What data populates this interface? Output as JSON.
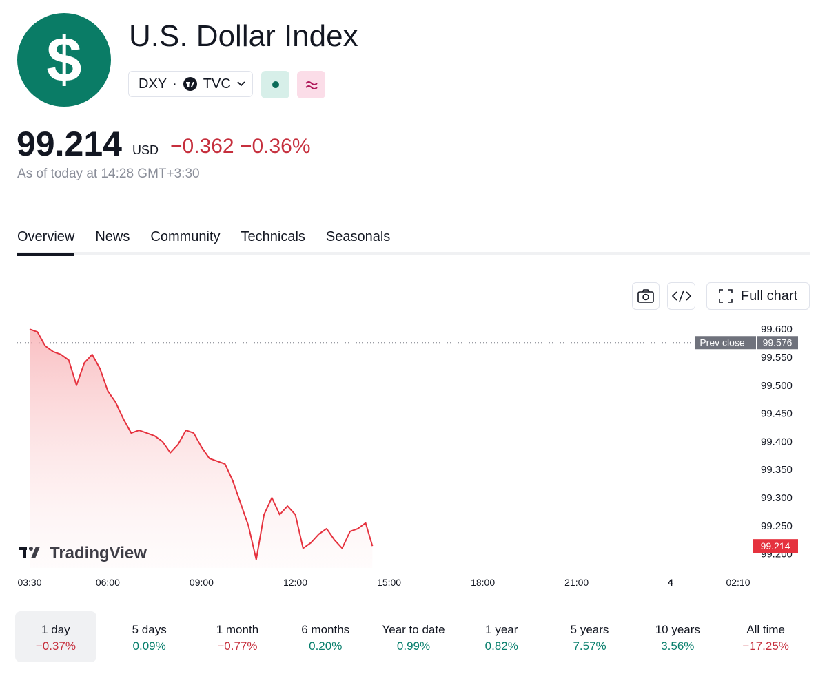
{
  "header": {
    "logo": "$",
    "title": "U.S. Dollar Index",
    "symbol": "DXY",
    "separator": "·",
    "exchange": "TVC",
    "price": 99.214,
    "currency": "USD",
    "change": "−0.362",
    "change_percent": "−0.36%",
    "as_of": "As of today at 14:28 GMT+3:30"
  },
  "tabs": [
    "Overview",
    "News",
    "Community",
    "Technicals",
    "Seasonals"
  ],
  "active_tab": 0,
  "toolbar": {
    "full_chart": "Full chart"
  },
  "chart": {
    "type": "line",
    "color": "#e5323e",
    "x": [
      "03:30",
      "03:45",
      "04:00",
      "04:15",
      "04:30",
      "04:45",
      "05:00",
      "05:15",
      "05:30",
      "05:45",
      "06:00",
      "06:15",
      "06:30",
      "06:45",
      "07:00",
      "07:15",
      "07:30",
      "07:45",
      "08:00",
      "08:15",
      "08:30",
      "08:45",
      "09:00",
      "09:15",
      "09:30",
      "09:45",
      "10:00",
      "10:15",
      "10:30",
      "10:45",
      "11:00",
      "11:15",
      "11:30",
      "11:45",
      "12:00",
      "12:15",
      "12:30",
      "12:45",
      "13:00",
      "13:15",
      "13:30",
      "13:45",
      "14:00",
      "14:15",
      "14:28"
    ],
    "values": [
      99.6,
      99.595,
      99.57,
      99.56,
      99.555,
      99.545,
      99.5,
      99.54,
      99.555,
      99.53,
      99.49,
      99.47,
      99.44,
      99.415,
      99.42,
      99.415,
      99.41,
      99.4,
      99.38,
      99.395,
      99.42,
      99.415,
      99.39,
      99.37,
      99.365,
      99.36,
      99.33,
      99.29,
      99.25,
      99.19,
      99.27,
      99.3,
      99.27,
      99.285,
      99.27,
      99.21,
      99.22,
      99.235,
      99.245,
      99.225,
      99.21,
      99.24,
      99.245,
      99.255,
      99.214
    ],
    "xlim": [
      "03:30",
      "02:10"
    ],
    "xticks": [
      "03:30",
      "06:00",
      "09:00",
      "12:00",
      "15:00",
      "18:00",
      "21:00",
      {
        "value": "00:00",
        "label": "4"
      },
      "02:10"
    ],
    "ylim": [
      99.175,
      99.61
    ],
    "yticks": [
      {
        "value": 99.6,
        "label": "99.600"
      },
      {
        "value": 99.55,
        "label": "99.550"
      },
      {
        "value": 99.5,
        "label": "99.500"
      },
      {
        "value": 99.45,
        "label": "99.450"
      },
      {
        "value": 99.4,
        "label": "99.400"
      },
      {
        "value": 99.35,
        "label": "99.350"
      },
      {
        "value": 99.3,
        "label": "99.300"
      },
      {
        "value": 99.25,
        "label": "99.250"
      },
      {
        "value": 99.2,
        "label": "99.200"
      }
    ],
    "prev_close": {
      "label": "Prev close",
      "value": 99.576
    },
    "last": 99.214,
    "watermark": "TradingView"
  },
  "selected_period": 0,
  "periods": [
    {
      "label": "1 day",
      "change": "−0.37%",
      "color": "#c62f3d"
    },
    {
      "label": "5 days",
      "change": "0.09%",
      "color": "#087f6d"
    },
    {
      "label": "1 month",
      "change": "−0.77%",
      "color": "#c62f3d"
    },
    {
      "label": "6 months",
      "change": "0.20%",
      "color": "#087f6d"
    },
    {
      "label": "Year to date",
      "change": "0.99%",
      "color": "#087f6d"
    },
    {
      "label": "1 year",
      "change": "0.82%",
      "color": "#087f6d"
    },
    {
      "label": "5 years",
      "change": "7.57%",
      "color": "#087f6d"
    },
    {
      "label": "10 years",
      "change": "3.56%",
      "color": "#087f6d"
    },
    {
      "label": "All time",
      "change": "−17.25%",
      "color": "#c62f3d"
    }
  ]
}
